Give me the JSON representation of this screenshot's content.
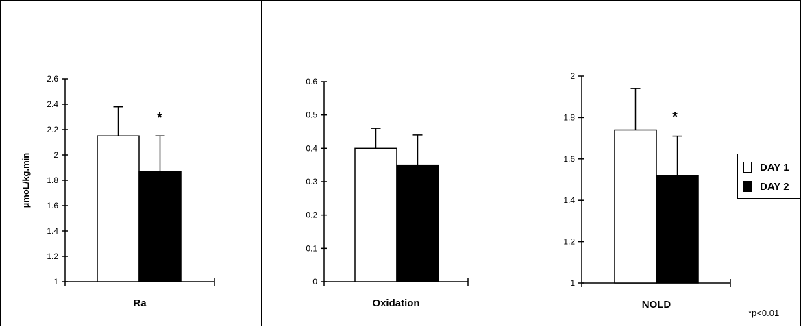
{
  "chart_data": [
    {
      "type": "bar",
      "categories": [
        "Ra"
      ],
      "series": [
        {
          "name": "DAY 1",
          "values": [
            2.15
          ],
          "error": [
            0.23
          ]
        },
        {
          "name": "DAY 2",
          "values": [
            1.87
          ],
          "error": [
            0.28
          ]
        }
      ],
      "ylabel": "µmoL/kg.min",
      "ylim": [
        1,
        2.6
      ],
      "yticks": [
        "1",
        "1.2",
        "1.4",
        "1.6",
        "1.8",
        "2",
        "2.2",
        "2.4",
        "2.6"
      ],
      "annotation": "*"
    },
    {
      "type": "bar",
      "categories": [
        "Oxidation"
      ],
      "series": [
        {
          "name": "DAY 1",
          "values": [
            0.4
          ],
          "error": [
            0.06
          ]
        },
        {
          "name": "DAY 2",
          "values": [
            0.35
          ],
          "error": [
            0.09
          ]
        }
      ],
      "ylim": [
        0,
        0.6
      ],
      "yticks": [
        "0",
        "0.1",
        "0.2",
        "0.3",
        "0.4",
        "0.5",
        "0.6"
      ]
    },
    {
      "type": "bar",
      "categories": [
        "NOLD"
      ],
      "series": [
        {
          "name": "DAY 1",
          "values": [
            1.74
          ],
          "error": [
            0.2
          ]
        },
        {
          "name": "DAY 2",
          "values": [
            1.52
          ],
          "error": [
            0.19
          ]
        }
      ],
      "ylim": [
        1,
        2
      ],
      "yticks": [
        "1",
        "1.2",
        "1.4",
        "1.6",
        "1.8",
        "2"
      ],
      "annotation": "*"
    }
  ],
  "legend": {
    "items": [
      {
        "label": "DAY 1",
        "color": "#ffffff"
      },
      {
        "label": "DAY 2",
        "color": "#000000"
      }
    ],
    "placement": "right"
  },
  "footnote": {
    "star": "*p",
    "le": "<",
    "value": "0.01"
  },
  "colors": {
    "day1": "#ffffff",
    "day2": "#000000",
    "axis": "#000000"
  }
}
